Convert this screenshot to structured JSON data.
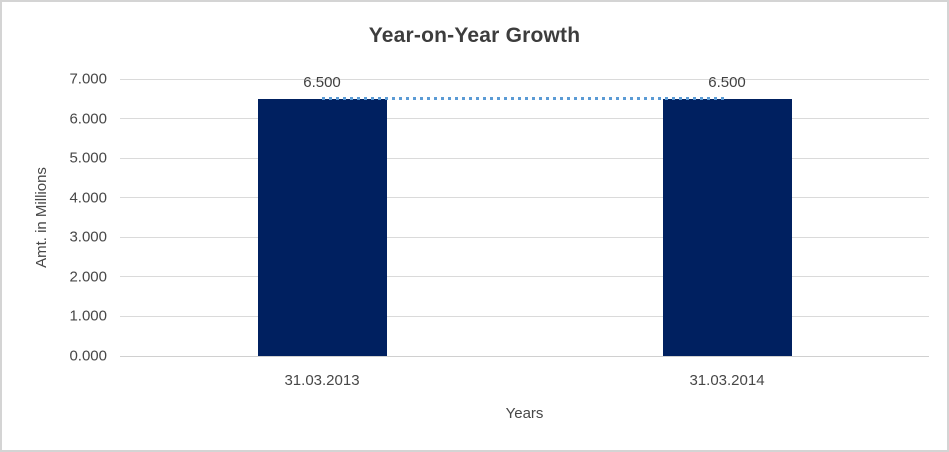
{
  "window": {
    "background": "#ffffff",
    "border_color": "#d4d4d4"
  },
  "chart_data": {
    "type": "bar",
    "title": "Year-on-Year Growth",
    "xlabel": "Years",
    "ylabel": "Amt. in Millions",
    "categories": [
      "31.03.2013",
      "31.03.2014"
    ],
    "values": [
      6.5,
      6.5
    ],
    "data_labels": [
      "6.500",
      "6.500"
    ],
    "ylim": [
      0,
      7
    ],
    "ytick_step": 1,
    "yticks": [
      "0.000",
      "1.000",
      "2.000",
      "3.000",
      "4.000",
      "5.000",
      "6.000",
      "7.000"
    ],
    "grid": "horizontal",
    "legend": "none",
    "connector_line": {
      "style": "dotted",
      "color": "#5B9BD5",
      "value": 6.5,
      "from_category": 0,
      "to_category": 1
    },
    "colors": {
      "bar": "#002060",
      "gridline": "#dadada",
      "axis_line": "#d0d0d0",
      "title_text": "#3d3d3d",
      "axis_text": "#474747",
      "label_text": "#404040"
    }
  }
}
